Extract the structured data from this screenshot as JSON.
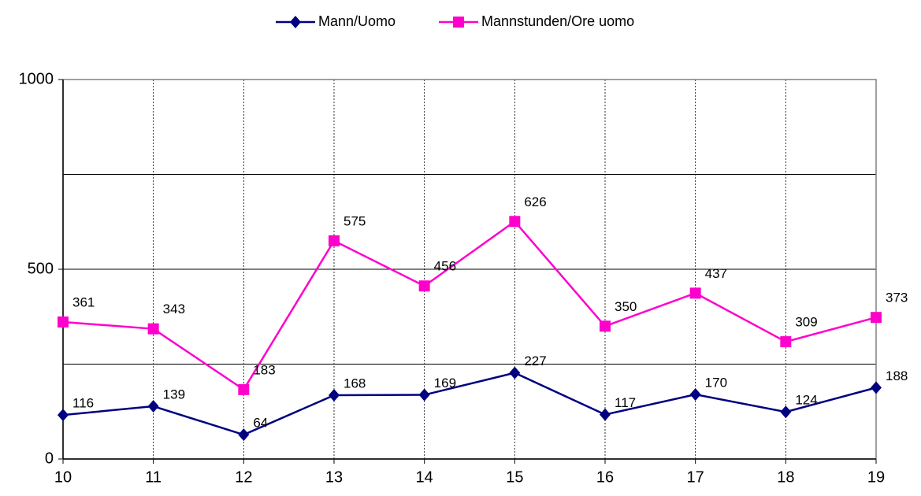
{
  "chart_data": {
    "type": "line",
    "x": [
      10,
      11,
      12,
      13,
      14,
      15,
      16,
      17,
      18,
      19
    ],
    "series": [
      {
        "name": "Mann/Uomo",
        "color": "#000080",
        "marker": "diamond",
        "values": [
          116,
          139,
          64,
          168,
          169,
          227,
          117,
          170,
          124,
          188
        ]
      },
      {
        "name": "Mannstunden/Ore uomo",
        "color": "#ff00cc",
        "marker": "square",
        "values": [
          361,
          343,
          183,
          575,
          456,
          626,
          350,
          437,
          309,
          373
        ]
      }
    ],
    "xlim": [
      10,
      19
    ],
    "xticks": [
      10,
      11,
      12,
      13,
      14,
      15,
      16,
      17,
      18,
      19
    ],
    "ylim": [
      0,
      1000
    ],
    "yticks": [
      0,
      500,
      1000
    ],
    "yminor": [
      250,
      750
    ],
    "grid": true,
    "legend": "top"
  }
}
